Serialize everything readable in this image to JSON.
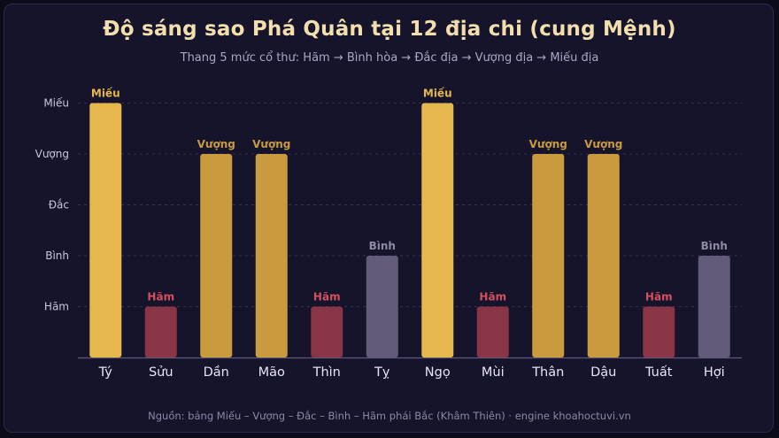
{
  "title": "Độ sáng sao Phá Quân tại 12 địa chi (cung Mệnh)",
  "subtitle": "Thang 5 mức cổ thư: Hãm → Bình hòa → Đắc địa → Vượng địa → Miếu địa",
  "footer": "Nguồn: bảng Miếu – Vượng – Đắc – Bình – Hãm phái Bắc (Khâm Thiên) · engine khoahoctuvi.vn",
  "colors": {
    "mieu": "#e5b74c",
    "vuong": "#c99b3e",
    "ham_bar": "#8a3545",
    "ham_label": "#d4505f",
    "binh_bar": "#625c7a",
    "binh_label": "#8f8aa6"
  },
  "chart_data": {
    "type": "bar",
    "title": "Độ sáng sao Phá Quân tại 12 địa chi (cung Mệnh)",
    "subtitle": "Thang 5 mức cổ thư: Hãm → Bình hòa → Đắc địa → Vượng địa → Miếu địa",
    "xlabel": "",
    "ylabel": "",
    "levels": [
      "Hãm",
      "Bình",
      "Đắc",
      "Vượng",
      "Miếu"
    ],
    "ylim": [
      0,
      5
    ],
    "categories": [
      "Tý",
      "Sửu",
      "Dần",
      "Mão",
      "Thìn",
      "Tỵ",
      "Ngọ",
      "Mùi",
      "Thân",
      "Dậu",
      "Tuất",
      "Hợi"
    ],
    "values": [
      5,
      1,
      4,
      4,
      1,
      2,
      5,
      1,
      4,
      4,
      1,
      2
    ],
    "data_labels": [
      "Miếu",
      "Hãm",
      "Vượng",
      "Vượng",
      "Hãm",
      "Bình",
      "Miếu",
      "Hãm",
      "Vượng",
      "Vượng",
      "Hãm",
      "Bình"
    ],
    "grid": true,
    "legend": "none"
  }
}
